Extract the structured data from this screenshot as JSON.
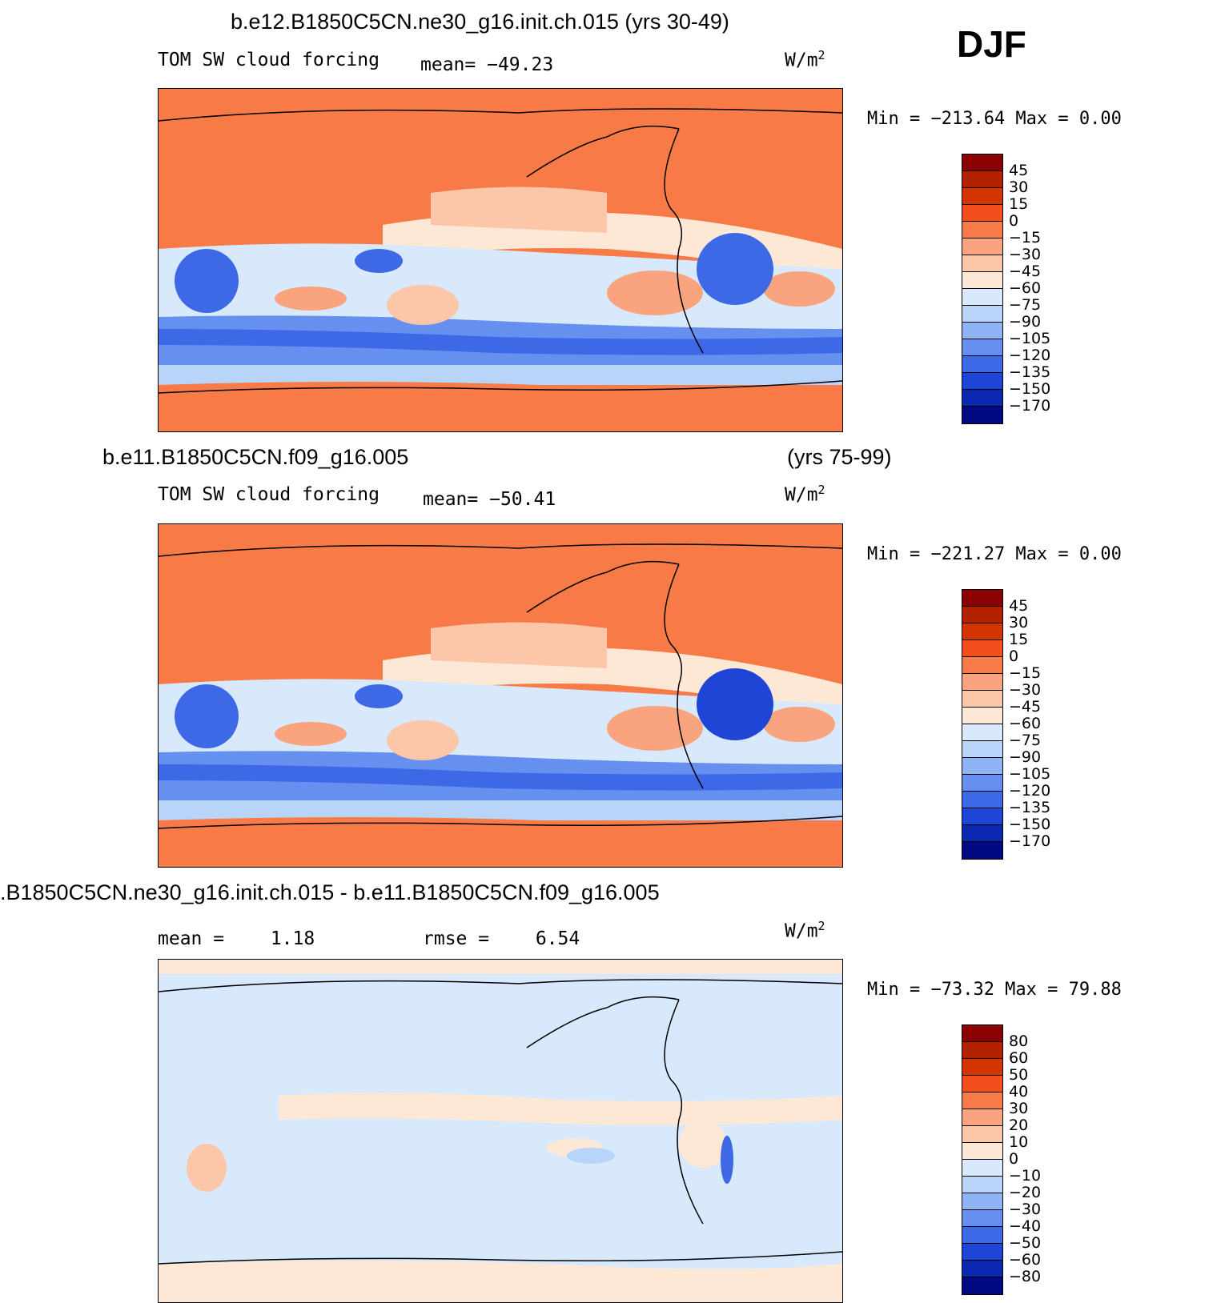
{
  "season": "DJF",
  "panels": [
    {
      "id": "test",
      "title": "b.e12.B1850C5CN.ne30_g16.init.ch.015 (yrs 30-49)",
      "title_right": "",
      "variable": "TOM SW cloud forcing",
      "stat1_label": "mean=",
      "stat1_value": "−49.23",
      "stat2_label": "",
      "stat2_value": "",
      "units": "W/m",
      "units_sup": "2",
      "min_max": "Min  =  −213.64  Max  =     0.00",
      "levels": [
        "45",
        "30",
        "15",
        "0",
        "−15",
        "−30",
        "−45",
        "−60",
        "−75",
        "−90",
        "−105",
        "−120",
        "−135",
        "−150",
        "−170"
      ],
      "colors": [
        "#8b0000",
        "#b22000",
        "#d43500",
        "#f24e1e",
        "#f77a47",
        "#f9a47f",
        "#fcc7a8",
        "#fde8d6",
        "#d7e9fb",
        "#b8d4f8",
        "#8fb3f4",
        "#6690ef",
        "#3d68e6",
        "#1f45d6",
        "#0a28b0",
        "#000a80"
      ]
    },
    {
      "id": "control",
      "title": "b.e11.B1850C5CN.f09_g16.005",
      "title_right": "(yrs 75-99)",
      "variable": "TOM SW cloud forcing",
      "stat1_label": "mean=",
      "stat1_value": "−50.41",
      "stat2_label": "",
      "stat2_value": "",
      "units": "W/m",
      "units_sup": "2",
      "min_max": "Min  =  −221.27  Max  =     0.00",
      "levels": [
        "45",
        "30",
        "15",
        "0",
        "−15",
        "−30",
        "−45",
        "−60",
        "−75",
        "−90",
        "−105",
        "−120",
        "−135",
        "−150",
        "−170"
      ],
      "colors": [
        "#8b0000",
        "#b22000",
        "#d43500",
        "#f24e1e",
        "#f77a47",
        "#f9a47f",
        "#fcc7a8",
        "#fde8d6",
        "#d7e9fb",
        "#b8d4f8",
        "#8fb3f4",
        "#6690ef",
        "#3d68e6",
        "#1f45d6",
        "#0a28b0",
        "#000a80"
      ]
    },
    {
      "id": "diff",
      "title": ".B1850C5CN.ne30_g16.init.ch.015 - b.e11.B1850C5CN.f09_g16.005",
      "title_right": "",
      "variable": "",
      "stat1_label": "mean  =",
      "stat1_value": "1.18",
      "stat2_label": "rmse  =",
      "stat2_value": "6.54",
      "units": "W/m",
      "units_sup": "2",
      "min_max": "Min  =  −73.32  Max  =   79.88",
      "levels": [
        "80",
        "60",
        "50",
        "40",
        "30",
        "20",
        "10",
        "0",
        "−10",
        "−20",
        "−30",
        "−40",
        "−50",
        "−60",
        "−80"
      ],
      "colors": [
        "#8b0000",
        "#b22000",
        "#d43500",
        "#f24e1e",
        "#f77a47",
        "#f9a47f",
        "#fcc7a8",
        "#fde8d6",
        "#d7e9fb",
        "#b8d4f8",
        "#8fb3f4",
        "#6690ef",
        "#3d68e6",
        "#1f45d6",
        "#0a28b0",
        "#000a80"
      ]
    }
  ]
}
